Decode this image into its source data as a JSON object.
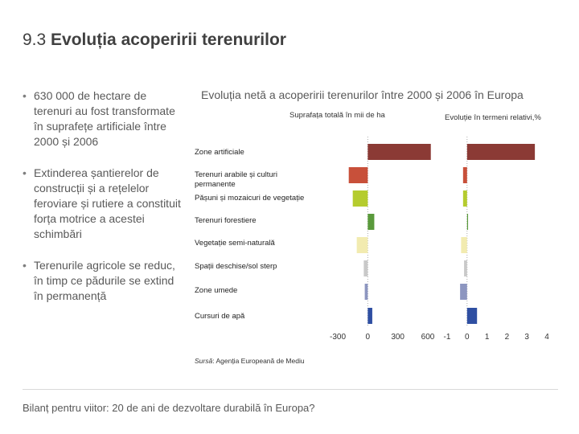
{
  "slide": {
    "title_number": "9.3",
    "title_text": "Evoluția acoperirii terenurilor"
  },
  "bullets": [
    "630 000 de hectare de terenuri au fost transformate în suprafețe artificiale între 2000 și 2006",
    "Extinderea șantierelor de construcții și a rețelelor feroviare și rutiere a constituit forța motrice a acestei schimbări",
    "Terenurile agricole se reduc, în timp ce pădurile se extind în permanență"
  ],
  "chart_title": "Evoluția netă a acoperirii terenurilor între 2000 și 2006 în Europa",
  "source_label": "Sursă",
  "source_text": ": Agenția Europeană de Mediu",
  "footer": "Bilanț pentru viitor: 20 de ani de dezvoltare durabilă în Europa?",
  "chart_data": [
    {
      "type": "bar",
      "orientation": "horizontal",
      "subtitle": "Suprafața totală în mii de ha",
      "categories": [
        "Zone artificiale",
        "Terenuri arabile și culturi permanente",
        "Pășuni și mozaicuri de vegetație",
        "Terenuri forestiere",
        "Vegetație semi-naturală",
        "Spații deschise/sol sterp",
        "Zone umede",
        "Cursuri de apă"
      ],
      "values": [
        630,
        -190,
        -150,
        65,
        -110,
        -40,
        -30,
        45
      ],
      "colors": [
        "#8b3a35",
        "#c8503a",
        "#b5cc2e",
        "#5a9a3c",
        "#f2ebb0",
        "#c9c9c9",
        "#8d96c0",
        "#2f4fa2"
      ],
      "xlim": [
        -300,
        600
      ],
      "ticks": [
        -300,
        0,
        300,
        600
      ]
    },
    {
      "type": "bar",
      "orientation": "horizontal",
      "subtitle": "Evoluție în termeni relativi,%",
      "categories": [
        "Zone artificiale",
        "Terenuri arabile și culturi permanente",
        "Pășuni și mozaicuri de vegetație",
        "Terenuri forestiere",
        "Vegetație semi-naturală",
        "Spații deschise/sol sterp",
        "Zone umede",
        "Cursuri de apă"
      ],
      "values": [
        3.4,
        -0.2,
        -0.2,
        0.05,
        -0.3,
        -0.15,
        -0.35,
        0.5
      ],
      "colors": [
        "#8b3a35",
        "#c8503a",
        "#b5cc2e",
        "#5a9a3c",
        "#f2ebb0",
        "#c9c9c9",
        "#8d96c0",
        "#2f4fa2"
      ],
      "xlim": [
        -1,
        4
      ],
      "ticks": [
        -1,
        0,
        1,
        2,
        3,
        4
      ]
    }
  ],
  "category_labels": [
    "Zone artificiale",
    "Terenuri arabile și culturi permanente",
    "Pășuni și mozaicuri de vegetație",
    "Terenuri forestiere",
    "Vegetație semi-naturală",
    "Spații deschise/sol sterp",
    "Zone umede",
    "Cursuri de apă"
  ]
}
